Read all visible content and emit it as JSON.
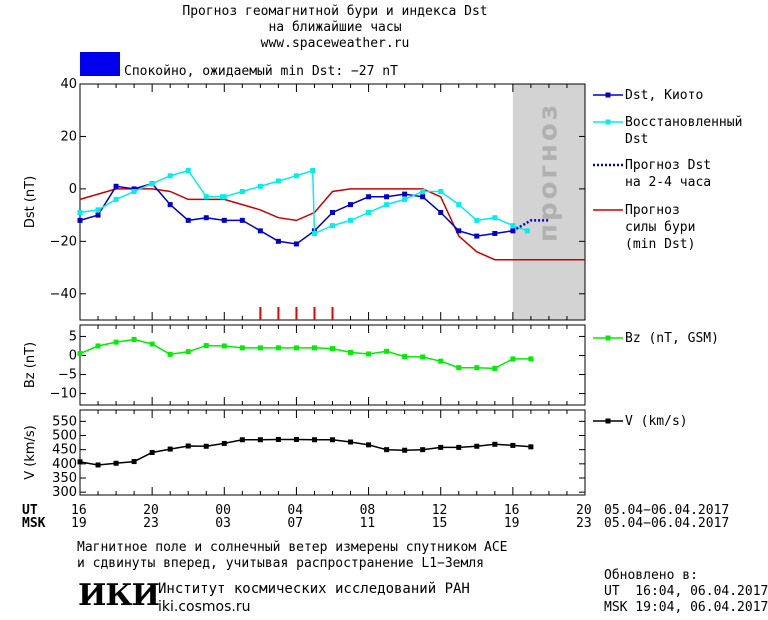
{
  "header": {
    "title_line1": "Прогноз геомагнитной бури и индекса Dst",
    "title_line2": "на ближайшие часы",
    "website": "www.spaceweather.ru",
    "status_text": "Спокойно, ожидаемый min Dst: −27 nT",
    "status_color": "#0000ee"
  },
  "chart_data": [
    {
      "type": "line",
      "ylabel": "Dst (nT)",
      "ylim": [
        -50,
        40
      ],
      "yticks": [
        "40",
        "20",
        "0",
        "−20",
        "−40"
      ],
      "yticks_values": [
        40,
        20,
        0,
        -20,
        -40
      ],
      "forecast_label": "прогноз",
      "forecast_band_hours": [
        24.0,
        28.0
      ],
      "forecast_band_color": "#d3d3d3",
      "storm_markers_hours": [
        10,
        11,
        12,
        13,
        14
      ],
      "storm_marker_color": "#ee0000",
      "series": [
        {
          "name": "Dst, Киото",
          "color": "#0000cc",
          "marker": "square",
          "x": [
            0,
            1,
            2,
            3,
            4,
            5,
            6,
            7,
            8,
            9,
            10,
            11,
            12,
            13,
            14,
            15,
            16,
            17,
            18,
            19,
            20,
            21,
            22,
            23,
            24
          ],
          "y": [
            -12,
            -10,
            1,
            0,
            2,
            -6,
            -12,
            -11,
            -12,
            -12,
            -16,
            -20,
            -21,
            -16,
            -9,
            -6,
            -3,
            -3,
            -2,
            -3,
            -9,
            -16,
            -18,
            -17,
            -16
          ]
        },
        {
          "name": "Восстановленный Dst",
          "color": "#00eeee",
          "marker": "square",
          "x": [
            0,
            1,
            2,
            3,
            4,
            5,
            6,
            7,
            7.9,
            8,
            9,
            10,
            11,
            12,
            12.9,
            13,
            14,
            15,
            16,
            17,
            18,
            19,
            20,
            21,
            22,
            23,
            24,
            24.8
          ],
          "y": [
            -9,
            -8,
            -4,
            -1,
            2,
            5,
            7,
            -3,
            -3,
            -3,
            -1,
            1,
            3,
            5,
            7,
            -17,
            -14,
            -12,
            -9,
            -6,
            -4,
            -1,
            -1,
            -6,
            -12,
            -11,
            -14,
            -16
          ]
        },
        {
          "name": "Прогноз Dst на 2-4 часа",
          "color": "#0000cc",
          "style": "dotted",
          "x": [
            24,
            25,
            26
          ],
          "y": [
            -16,
            -12,
            -12
          ]
        },
        {
          "name": "Прогноз силы бури (min Dst)",
          "color": "#cc0000",
          "x": [
            0,
            2,
            3,
            4,
            5,
            6,
            7,
            8,
            9,
            10,
            11,
            12,
            13,
            14,
            15,
            16,
            17,
            18,
            19,
            20,
            21,
            22,
            23,
            24,
            25,
            26,
            27,
            28
          ],
          "y": [
            -4,
            0,
            0,
            0,
            -1,
            -4,
            -4,
            -4,
            -6,
            -8,
            -11,
            -12,
            -9,
            -1,
            0,
            0,
            0,
            0,
            0,
            -3,
            -18,
            -24,
            -27,
            -27,
            -27,
            -27,
            -27,
            -27
          ]
        }
      ],
      "legend": [
        {
          "line1": "Dst, Киото",
          "line2": ""
        },
        {
          "line1": "Восстановленный",
          "line2": "Dst"
        },
        {
          "line1": "Прогноз Dst",
          "line2": "на 2-4 часа"
        },
        {
          "line1": "Прогноз",
          "line2": "силы бури",
          "line3": "(min Dst)"
        }
      ]
    },
    {
      "type": "line",
      "ylabel": "Bz (nT)",
      "ylim": [
        -13,
        8
      ],
      "yticks": [
        "5",
        "0",
        "−5",
        "−10"
      ],
      "yticks_values": [
        5,
        0,
        -5,
        -10
      ],
      "series": [
        {
          "name": "Bz (nT, GSM)",
          "color": "#00ee00",
          "marker": "square",
          "x": [
            0,
            1,
            2,
            3,
            4,
            5,
            6,
            7,
            8,
            9,
            10,
            11,
            12,
            13,
            14,
            15,
            16,
            17,
            18,
            19,
            20,
            21,
            22,
            23,
            24,
            25
          ],
          "y": [
            0.5,
            2.5,
            3.5,
            4.2,
            3,
            0.3,
            1,
            2.6,
            2.5,
            2,
            2,
            2,
            2,
            2,
            1.8,
            0.8,
            0.4,
            1.1,
            -0.3,
            -0.4,
            -1.5,
            -3.2,
            -3.2,
            -3.4,
            -0.9,
            -0.9
          ]
        }
      ]
    },
    {
      "type": "line",
      "ylabel": "V (km/s)",
      "ylim": [
        290,
        590
      ],
      "yticks": [
        "550",
        "500",
        "450",
        "400",
        "350",
        "300"
      ],
      "yticks_values": [
        550,
        500,
        450,
        400,
        350,
        300
      ],
      "series": [
        {
          "name": "V (km/s)",
          "color": "#000000",
          "marker": "square",
          "x": [
            0,
            1,
            2,
            3,
            4,
            5,
            6,
            7,
            8,
            9,
            10,
            11,
            12,
            13,
            14,
            15,
            16,
            17,
            18,
            19,
            20,
            21,
            22,
            23,
            24,
            25
          ],
          "y": [
            407,
            396,
            402,
            408,
            440,
            452,
            463,
            462,
            472,
            485,
            485,
            486,
            486,
            485,
            485,
            477,
            467,
            450,
            448,
            450,
            458,
            458,
            462,
            469,
            465,
            460
          ]
        }
      ]
    }
  ],
  "xaxis": {
    "ut_label": "UT",
    "msk_label": "MSK",
    "ut_ticks": [
      "16",
      "20",
      "00",
      "04",
      "08",
      "12",
      "16",
      "20"
    ],
    "msk_ticks": [
      "19",
      "23",
      "03",
      "07",
      "11",
      "15",
      "19",
      "23"
    ],
    "date_range": "05.04−06.04.2017",
    "range_hours": [
      0,
      28
    ],
    "major_step_hours": 4
  },
  "footer": {
    "note_line1": "Магнитное поле и солнечный ветер измерены спутником ACE",
    "note_line2": "и сдвинуты вперед, учитывая распространение L1−Земля",
    "logo_text": "ИКИ",
    "institute": "Институт космических исследований РАН",
    "institute_site": "iki.cosmos.ru",
    "updated_label": "Обновлено в:",
    "updated_ut": "UT  16:04, 06.04.2017",
    "updated_msk": "MSK 19:04, 06.04.2017"
  }
}
